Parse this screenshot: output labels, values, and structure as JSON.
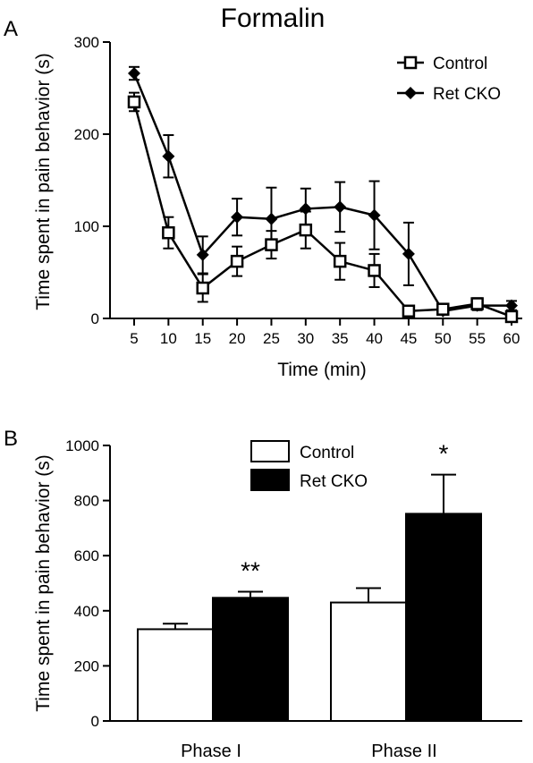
{
  "chart_data": [
    {
      "panel": "A",
      "type": "line",
      "title": "Formalin",
      "xlabel": "Time (min)",
      "ylabel": "Time spent in pain behavior (s)",
      "x": [
        5,
        10,
        15,
        20,
        25,
        30,
        35,
        40,
        45,
        50,
        55,
        60
      ],
      "xticks": [
        "5",
        "10",
        "15",
        "20",
        "25",
        "30",
        "35",
        "40",
        "45",
        "50",
        "55",
        "60"
      ],
      "yticks": [
        "0",
        "100",
        "200",
        "300"
      ],
      "ylim": [
        0,
        300
      ],
      "legend_position": "top-right",
      "grid": false,
      "series": [
        {
          "name": "Control",
          "marker": "open-square",
          "color": "#000000",
          "values": [
            235,
            93,
            33,
            62,
            80,
            96,
            62,
            52,
            8,
            10,
            16,
            2
          ],
          "errors": [
            10,
            17,
            15,
            16,
            15,
            20,
            20,
            18,
            3,
            5,
            6,
            3
          ]
        },
        {
          "name": "Ret CKO",
          "marker": "filled-diamond",
          "color": "#000000",
          "values": [
            266,
            176,
            69,
            110,
            108,
            119,
            121,
            112,
            70,
            8,
            14,
            14
          ],
          "errors": [
            7,
            23,
            20,
            20,
            34,
            22,
            27,
            37,
            34,
            4,
            5,
            5
          ]
        }
      ]
    },
    {
      "panel": "B",
      "type": "bar",
      "xlabel": "",
      "ylabel": "Time spent in pain behavior (s)",
      "categories": [
        "Phase I",
        "Phase II"
      ],
      "yticks": [
        "0",
        "200",
        "400",
        "600",
        "800",
        "1000"
      ],
      "ylim": [
        0,
        1000
      ],
      "legend_position": "top-center",
      "grid": false,
      "series": [
        {
          "name": "Control",
          "fill": "#ffffff",
          "values": [
            333,
            430
          ],
          "errors": [
            20,
            52
          ]
        },
        {
          "name": "Ret CKO",
          "fill": "#000000",
          "values": [
            447,
            752
          ],
          "errors": [
            22,
            142
          ]
        }
      ],
      "significance": [
        "**",
        "*"
      ]
    }
  ]
}
